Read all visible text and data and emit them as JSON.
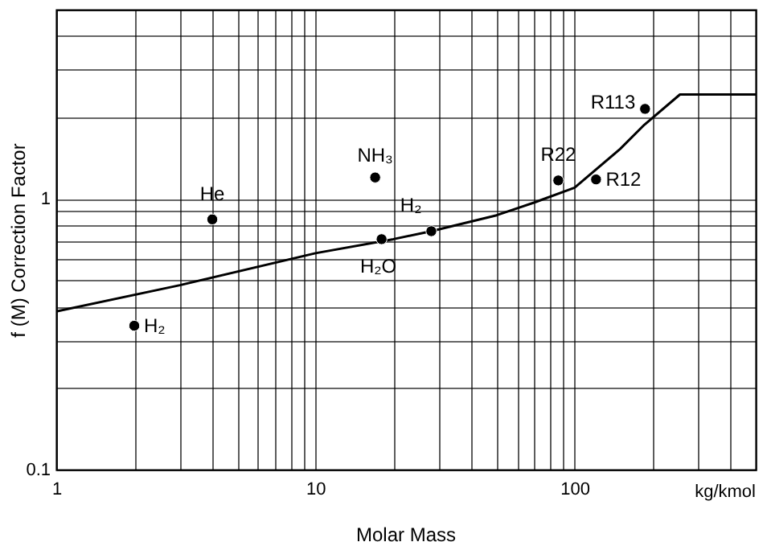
{
  "chart_data": {
    "type": "scatter",
    "xlabel": "Molar Mass",
    "ylabel": "f (M) Correction Factor",
    "log": "xy",
    "grid": true,
    "marker": "circle",
    "xlim": [
      1,
      500
    ],
    "ylim": [
      0.1,
      5
    ],
    "xticks": [
      1,
      {
        "value": 2,
        "label": null
      },
      {
        "value": 3,
        "label": null
      },
      {
        "value": 4,
        "label": null
      },
      {
        "value": 5,
        "label": null
      },
      {
        "value": 6,
        "label": null
      },
      {
        "value": 7,
        "label": null
      },
      {
        "value": 8,
        "label": null
      },
      {
        "value": 9,
        "label": null
      },
      10,
      {
        "value": 20,
        "label": null
      },
      {
        "value": 30,
        "label": null
      },
      {
        "value": 40,
        "label": null
      },
      {
        "value": 50,
        "label": null
      },
      {
        "value": 60,
        "label": null
      },
      {
        "value": 70,
        "label": null
      },
      {
        "value": 80,
        "label": null
      },
      {
        "value": 90,
        "label": null
      },
      100,
      {
        "value": 200,
        "label": null
      },
      {
        "value": 300,
        "label": null
      },
      {
        "value": 400,
        "label": null
      }
    ],
    "yticks": [
      0.1,
      {
        "value": 0.2,
        "label": null
      },
      {
        "value": 0.3,
        "label": null
      },
      {
        "value": 0.4,
        "label": null
      },
      {
        "value": 0.5,
        "label": null
      },
      {
        "value": 0.6,
        "label": null
      },
      {
        "value": 0.7,
        "label": null
      },
      {
        "value": 0.8,
        "label": null
      },
      {
        "value": 0.9,
        "label": null
      },
      1,
      {
        "value": 2,
        "label": null
      },
      {
        "value": 3,
        "label": null
      },
      {
        "value": 4,
        "label": null
      },
      {
        "value": 5,
        "label": null
      }
    ],
    "series": [
      {
        "type": "line",
        "color": "#000000",
        "marker": "none",
        "x": [
          1,
          3,
          10,
          20,
          28,
          50,
          70,
          100,
          150,
          186,
          255,
          500
        ],
        "values": [
          0.384,
          0.48,
          0.63,
          0.71,
          0.76,
          0.87,
          0.97,
          1.1,
          1.53,
          1.88,
          2.43,
          2.43
        ]
      },
      {
        "type": "scatter",
        "color": "#000000",
        "x": [
          2,
          4,
          17,
          18,
          28,
          86.5,
          121,
          187
        ],
        "values": [
          0.34,
          0.84,
          1.2,
          0.71,
          0.76,
          1.17,
          1.18,
          2.15
        ]
      }
    ],
    "annotations": [
      {
        "text": "H₂",
        "x": 2,
        "y": 0.34
      },
      {
        "text": "He",
        "x": 4,
        "y": 0.84
      },
      {
        "text": "NH₃",
        "x": 17,
        "y": 1.2
      },
      {
        "text": "H₂O",
        "x": 18,
        "y": 0.71
      },
      {
        "text": "H₂",
        "x": 28,
        "y": 0.76
      },
      {
        "text": "R22",
        "x": 86.5,
        "y": 1.17
      },
      {
        "text": "R12",
        "x": 121,
        "y": 1.18
      },
      {
        "text": "R113",
        "x": 187,
        "y": 2.15
      },
      "kg/kmol"
    ]
  }
}
